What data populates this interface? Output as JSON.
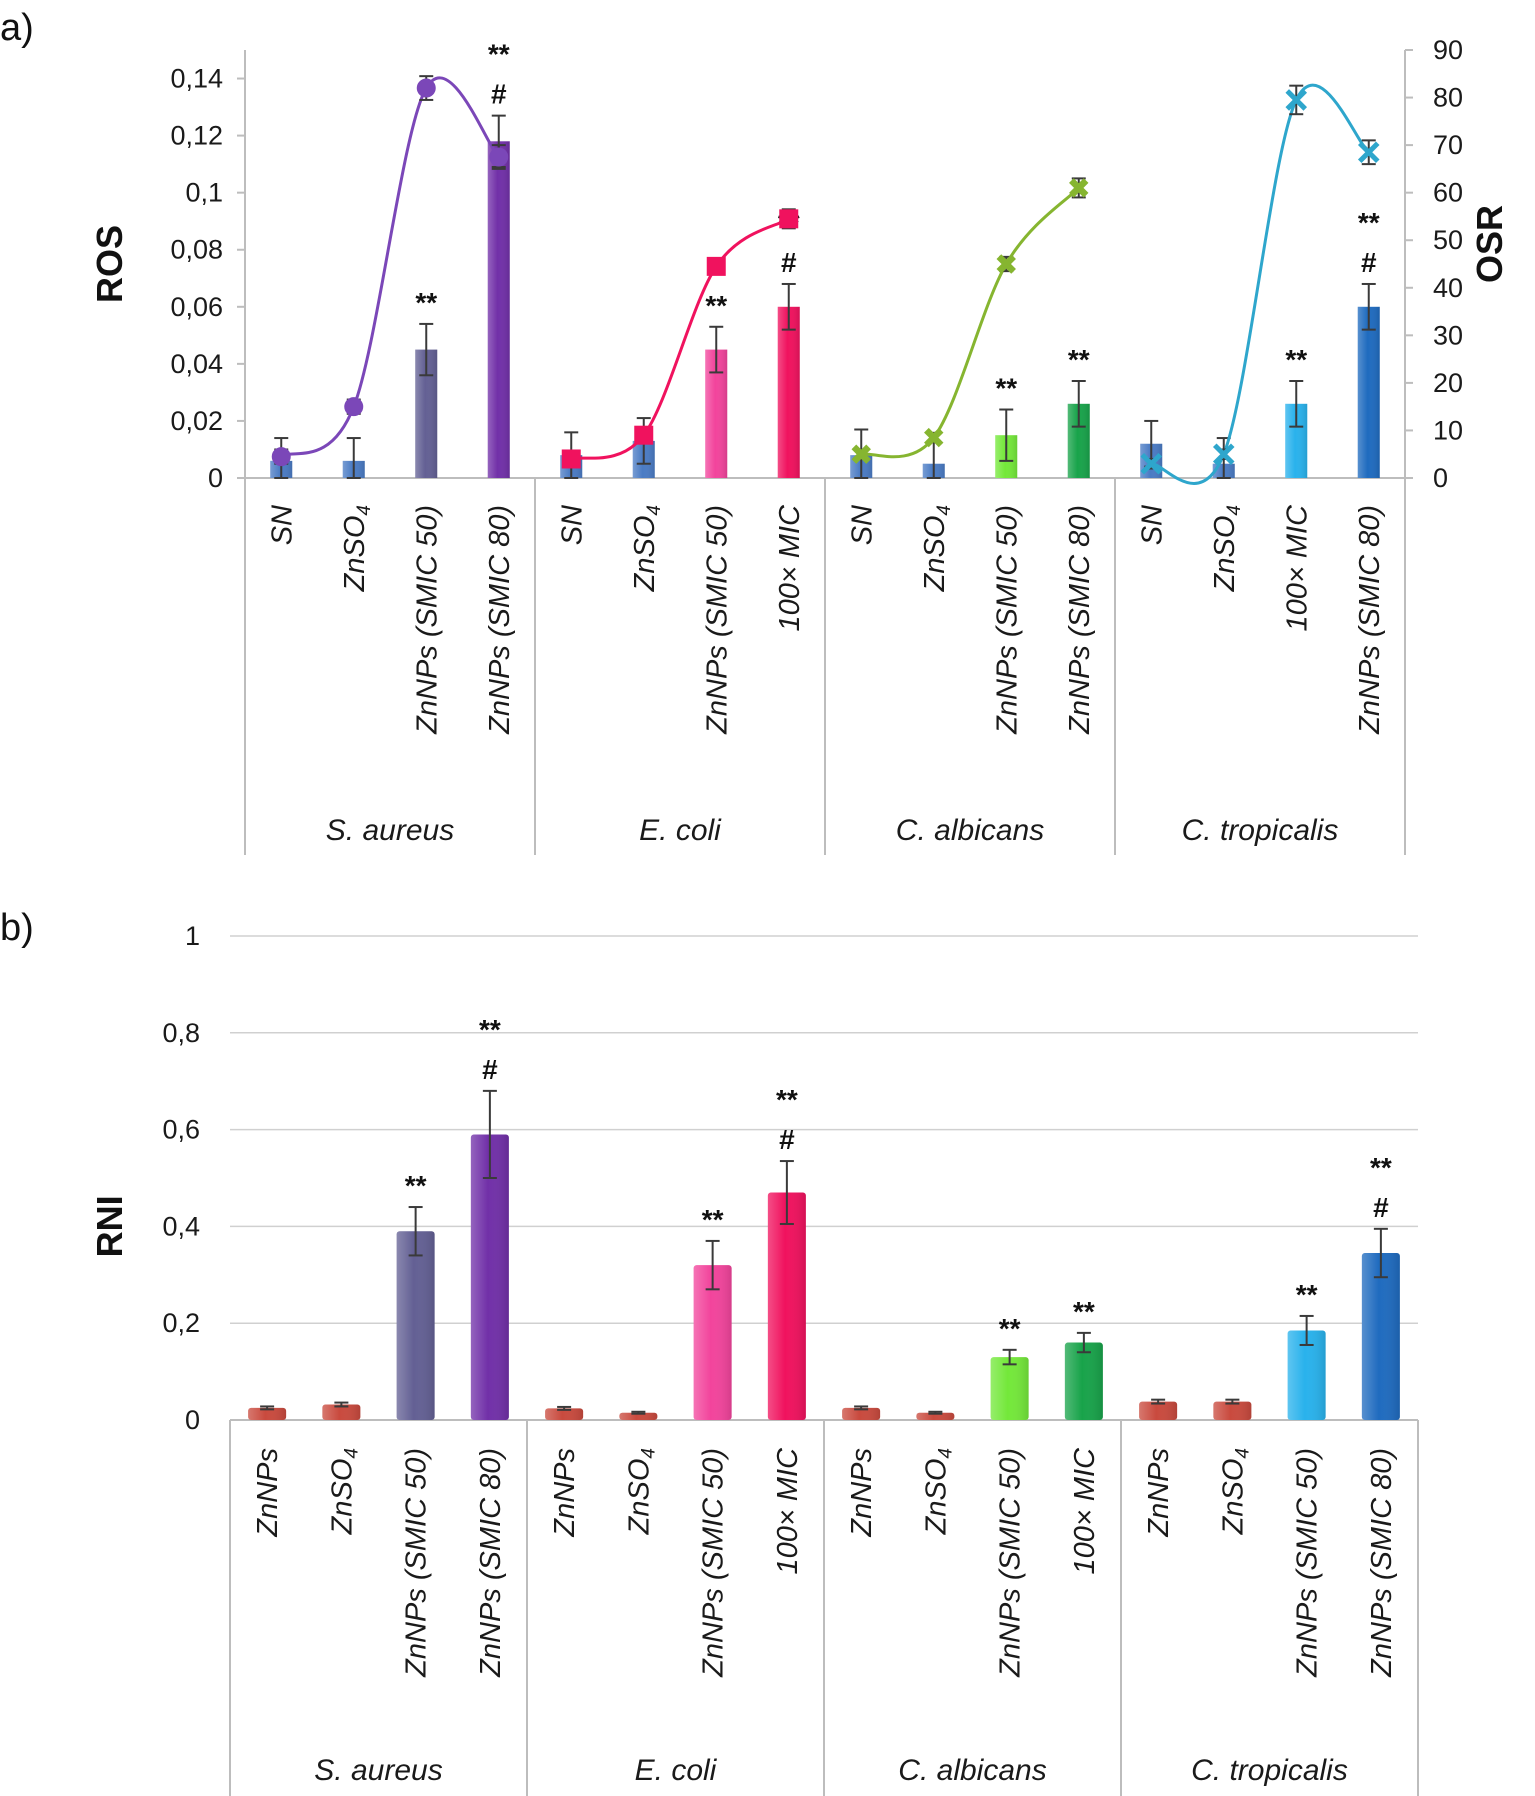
{
  "chart_data": [
    {
      "panel_label": "a)",
      "type": "bar+line",
      "ylabel": "ROS",
      "y2label": "OSR",
      "ylim": [
        0,
        0.15
      ],
      "yticks": [
        "0",
        "0,02",
        "0,04",
        "0,06",
        "0,08",
        "0,1",
        "0,12",
        "0,14"
      ],
      "y2lim": [
        0,
        90
      ],
      "y2ticks": [
        "0",
        "10",
        "20",
        "30",
        "40",
        "50",
        "60",
        "70",
        "80",
        "90"
      ],
      "groups": [
        {
          "name": "S. aureus",
          "line_color": "#7b47b8",
          "categories": [
            "SN",
            "ZnSO₄",
            "ZnNPs (SMIC 50)",
            "ZnNPs (SMIC 80)"
          ],
          "bar_colors": [
            "#4a7bc4",
            "#4a7bc4",
            "#636094",
            "#7130a8"
          ],
          "ros": [
            0.006,
            0.006,
            0.045,
            0.118
          ],
          "ros_err": [
            0.008,
            0.008,
            0.009,
            0.009
          ],
          "osr": [
            4.5,
            15,
            82,
            67.5
          ],
          "osr_err": [
            1.5,
            1.5,
            2.5,
            2.5
          ],
          "annotations": [
            "",
            "",
            "**",
            "**\n#"
          ]
        },
        {
          "name": "E. coli",
          "line_color": "#f0125e",
          "categories": [
            "SN",
            "ZnSO₄",
            "ZnNPs (SMIC 50)",
            "100× MIC"
          ],
          "bar_colors": [
            "#4a7bc4",
            "#4a7bc4",
            "#f2449c",
            "#f0125e"
          ],
          "ros": [
            0.008,
            0.013,
            0.045,
            0.06
          ],
          "ros_err": [
            0.008,
            0.008,
            0.008,
            0.008
          ],
          "osr": [
            4,
            9,
            44.5,
            54.5
          ],
          "osr_err": [
            1,
            1.5,
            1.5,
            2
          ],
          "annotations": [
            "",
            "",
            "**",
            "**\n#"
          ]
        },
        {
          "name": "C. albicans",
          "line_color": "#86b530",
          "categories": [
            "SN",
            "ZnSO₄",
            "ZnNPs (SMIC 50)",
            "ZnNPs (SMIC 80)"
          ],
          "bar_colors": [
            "#4a7bc4",
            "#4a7bc4",
            "#74e83a",
            "#18a34a"
          ],
          "ros": [
            0.008,
            0.005,
            0.015,
            0.026
          ],
          "ros_err": [
            0.009,
            0.008,
            0.009,
            0.008
          ],
          "osr": [
            5,
            8.5,
            45,
            61
          ],
          "osr_err": [
            0.8,
            1,
            1.5,
            2
          ],
          "annotations": [
            "",
            "",
            "**",
            "**"
          ]
        },
        {
          "name": "C. tropicalis",
          "line_color": "#2ea6cc",
          "categories": [
            "SN",
            "ZnSO₄",
            "100× MIC",
            "ZnNPs (SMIC 80)"
          ],
          "bar_colors": [
            "#4a7bc4",
            "#4a7bc4",
            "#29b2ec",
            "#1f6bbf"
          ],
          "ros": [
            0.012,
            0.005,
            0.026,
            0.06
          ],
          "ros_err": [
            0.008,
            0.009,
            0.008,
            0.008
          ],
          "osr": [
            3,
            5,
            79.5,
            68.5
          ],
          "osr_err": [
            1,
            1,
            3,
            2.5
          ],
          "annotations": [
            "",
            "",
            "**",
            "**\n#"
          ]
        }
      ]
    },
    {
      "panel_label": "b)",
      "type": "bar",
      "ylabel": "RNI",
      "ylim": [
        0,
        1
      ],
      "yticks": [
        "0",
        "0,2",
        "0,4",
        "0,6",
        "0,8",
        "1"
      ],
      "grid": true,
      "groups": [
        {
          "name": "S. aureus",
          "categories": [
            "ZnNPs",
            "ZnSO₄",
            "ZnNPs (SMIC 50)",
            "ZnNPs (SMIC 80)"
          ],
          "bar_colors": [
            "#c94a3e",
            "#c94a3e",
            "#636094",
            "#7130a8"
          ],
          "values": [
            0.025,
            0.032,
            0.39,
            0.59
          ],
          "errors": [
            0.003,
            0.004,
            0.05,
            0.09
          ],
          "annotations": [
            "",
            "",
            "**",
            "**\n#"
          ]
        },
        {
          "name": "E. coli",
          "categories": [
            "ZnNPs",
            "ZnSO₄",
            "ZnNPs (SMIC 50)",
            "100× MIC"
          ],
          "bar_colors": [
            "#c94a3e",
            "#c94a3e",
            "#f2449c",
            "#f0125e"
          ],
          "values": [
            0.024,
            0.015,
            0.32,
            0.47
          ],
          "errors": [
            0.003,
            0.002,
            0.05,
            0.065
          ],
          "annotations": [
            "",
            "",
            "**",
            "**\n#"
          ]
        },
        {
          "name": "C. albicans",
          "categories": [
            "ZnNPs",
            "ZnSO₄",
            "ZnNPs (SMIC 50)",
            "100× MIC"
          ],
          "bar_colors": [
            "#c94a3e",
            "#c94a3e",
            "#74e83a",
            "#18a34a"
          ],
          "values": [
            0.025,
            0.015,
            0.13,
            0.16
          ],
          "errors": [
            0.003,
            0.002,
            0.015,
            0.02
          ],
          "annotations": [
            "",
            "",
            "**",
            "**"
          ]
        },
        {
          "name": "C. tropicalis",
          "categories": [
            "ZnNPs",
            "ZnSO₄",
            "ZnNPs (SMIC 50)",
            "ZnNPs (SMIC 80)"
          ],
          "bar_colors": [
            "#c94a3e",
            "#c94a3e",
            "#29b2ec",
            "#1f6bbf"
          ],
          "values": [
            0.038,
            0.038,
            0.185,
            0.345
          ],
          "errors": [
            0.004,
            0.004,
            0.03,
            0.05
          ],
          "annotations": [
            "",
            "",
            "**",
            "**\n#"
          ]
        }
      ]
    }
  ]
}
